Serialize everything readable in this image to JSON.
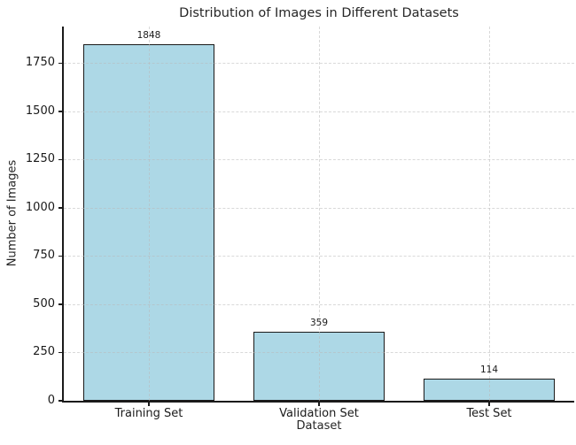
{
  "chart_data": {
    "type": "bar",
    "title": "Distribution of Images in Different Datasets",
    "xlabel": "Dataset",
    "ylabel": "Number of Images",
    "categories": [
      "Training Set",
      "Validation Set",
      "Test Set"
    ],
    "values": [
      1848,
      359,
      114
    ],
    "value_labels": [
      "1848",
      "359",
      "114"
    ],
    "yticks": [
      0,
      250,
      500,
      750,
      1000,
      1250,
      1500,
      1750
    ],
    "ylim": [
      0,
      1940
    ],
    "grid": "dashed, drawn over bars",
    "legend": "none",
    "colors": {
      "bar_fill": "#ADD8E6",
      "bar_edge": "#1a1a1a",
      "grid": "#b9b9b9",
      "text": "#262626",
      "background": "#ffffff"
    }
  }
}
